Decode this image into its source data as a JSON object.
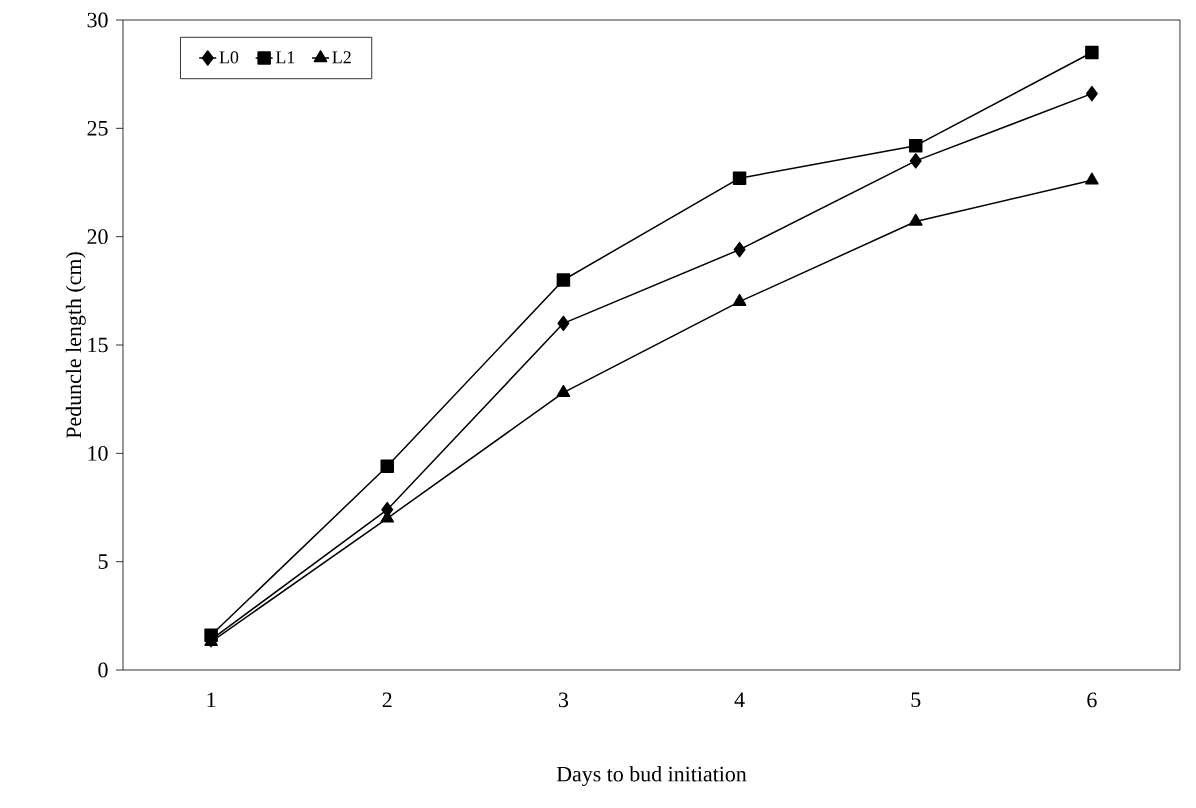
{
  "chart_data": {
    "type": "line",
    "xlabel": "Days to bud initiation",
    "ylabel": "Peduncle length (cm)",
    "categories": [
      "1",
      "2",
      "3",
      "4",
      "5",
      "6"
    ],
    "series": [
      {
        "name": "L0",
        "color": "#000000",
        "marker": "diamond",
        "values": [
          1.4,
          7.4,
          16.0,
          19.4,
          23.5,
          26.6
        ]
      },
      {
        "name": "L1",
        "color": "#000000",
        "marker": "square",
        "values": [
          1.6,
          9.4,
          18.0,
          22.7,
          24.2,
          28.5
        ]
      },
      {
        "name": "L2",
        "color": "#000000",
        "marker": "triangle",
        "values": [
          1.3,
          7.0,
          12.8,
          17.0,
          20.7,
          22.6
        ]
      }
    ],
    "ylim": [
      0,
      30
    ],
    "yticks": [
      0,
      5,
      10,
      15,
      20,
      25,
      30
    ],
    "grid": false,
    "legend": "top left",
    "line_style": "solid"
  }
}
